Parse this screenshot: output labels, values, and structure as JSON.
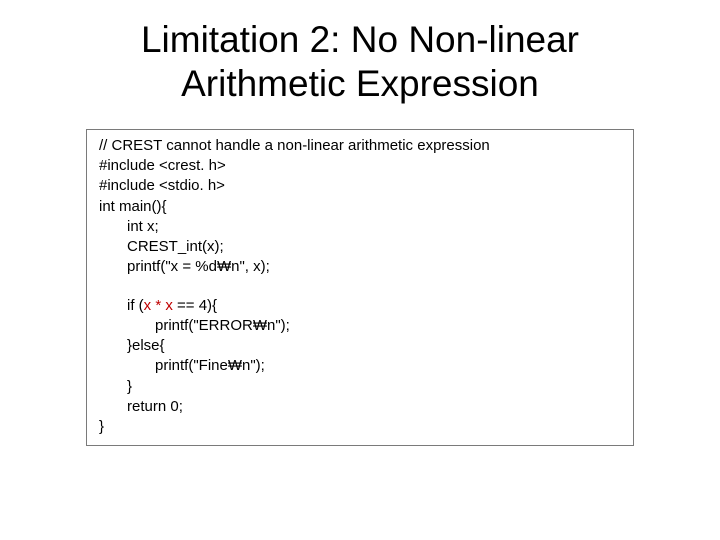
{
  "title": "Limitation 2: No Non-linear Arithmetic Expression",
  "colors": {
    "text": "#000000",
    "highlight": "#c00000",
    "border": "#7a7a7a",
    "background": "#ffffff"
  },
  "font": {
    "title_size_pt": 28,
    "code_size_pt": 11,
    "family": "Malgun Gothic"
  },
  "code": {
    "l1": "// CREST cannot handle a non-linear arithmetic expression",
    "l2": "#include <crest. h>",
    "l3": "#include <stdio. h>",
    "l4": "int main(){",
    "l5": "int x;",
    "l6": "CREST_int(x);",
    "l7": "printf(\"x = %d₩n\", x);",
    "l8a": "if (",
    "l8b": "x * x",
    "l8c": " == 4){",
    "l9": "printf(\"ERROR₩n\");",
    "l10": "}else{",
    "l11": "printf(\"Fine₩n\");",
    "l12": "}",
    "l13": "return 0;",
    "l14": "}"
  }
}
